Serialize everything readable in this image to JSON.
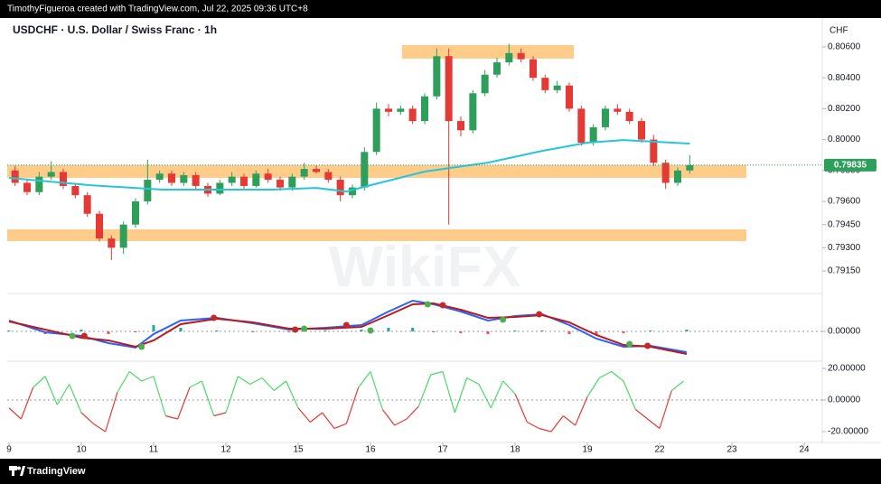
{
  "header": {
    "text": "TimothyFigueroa created with TradingView.com, Jul 22, 2025 09:36 UTC+8"
  },
  "footer": {
    "brand": "TradingView"
  },
  "chart_data": [
    {
      "type": "candlestick",
      "title": "USDCHF · U.S. Dollar / Swiss Franc · 1h",
      "currency": "CHF",
      "watermark": "WikiFX",
      "up_color": "#2e9e5b",
      "down_color": "#e53935",
      "xlim": [
        -0.6,
        270
      ],
      "ylim": [
        0.79004,
        0.80775
      ],
      "yticks": [
        {
          "value": 0.806,
          "label": "0.80600"
        },
        {
          "value": 0.804,
          "label": "0.80400"
        },
        {
          "value": 0.802,
          "label": "0.80200"
        },
        {
          "value": 0.8,
          "label": "0.80000"
        },
        {
          "value": 0.798,
          "label": "0.79800"
        },
        {
          "value": 0.796,
          "label": "0.79600"
        },
        {
          "value": 0.7945,
          "label": "0.79450"
        },
        {
          "value": 0.793,
          "label": "0.79300"
        },
        {
          "value": 0.7915,
          "label": "0.79150"
        }
      ],
      "x": [
        2,
        6,
        10,
        14,
        18,
        22,
        26,
        30,
        34,
        38,
        42,
        46,
        50,
        54,
        58,
        62,
        66,
        70,
        74,
        78,
        82,
        86,
        90,
        94,
        98,
        102,
        106,
        110,
        114,
        118,
        122,
        126,
        130,
        134,
        138,
        142,
        146,
        150,
        154,
        158,
        162,
        166,
        170,
        174,
        178,
        182,
        186,
        190,
        194,
        198,
        202,
        206,
        210,
        214,
        218,
        222,
        226
      ],
      "open": [
        0.798,
        0.7972,
        0.7966,
        0.7976,
        0.7979,
        0.797,
        0.7964,
        0.7952,
        0.7936,
        0.793,
        0.7945,
        0.796,
        0.7974,
        0.7978,
        0.7972,
        0.7977,
        0.797,
        0.7965,
        0.7972,
        0.7976,
        0.797,
        0.7978,
        0.7974,
        0.7969,
        0.7976,
        0.7981,
        0.7979,
        0.7974,
        0.7964,
        0.7969,
        0.7992,
        0.802,
        0.8018,
        0.802,
        0.8012,
        0.8028,
        0.8054,
        0.8012,
        0.8006,
        0.803,
        0.8042,
        0.805,
        0.8056,
        0.8052,
        0.804,
        0.8032,
        0.8035,
        0.802,
        0.7998,
        0.8008,
        0.802,
        0.8018,
        0.8012,
        0.8,
        0.7985,
        0.7972,
        0.798
      ],
      "high": [
        0.7983,
        0.7974,
        0.7979,
        0.7986,
        0.7981,
        0.7972,
        0.7966,
        0.7954,
        0.7938,
        0.7947,
        0.7962,
        0.7987,
        0.798,
        0.798,
        0.7979,
        0.7979,
        0.7972,
        0.7974,
        0.7979,
        0.7978,
        0.798,
        0.7981,
        0.7976,
        0.7978,
        0.7985,
        0.7983,
        0.7981,
        0.7976,
        0.7971,
        0.7995,
        0.8024,
        0.8023,
        0.8022,
        0.8022,
        0.803,
        0.8059,
        0.8059,
        0.8015,
        0.8032,
        0.8045,
        0.8053,
        0.8062,
        0.8059,
        0.8054,
        0.8042,
        0.8038,
        0.8037,
        0.8022,
        0.801,
        0.8022,
        0.8023,
        0.802,
        0.8014,
        0.8003,
        0.7987,
        0.7982,
        0.799
      ],
      "low": [
        0.797,
        0.7964,
        0.7964,
        0.7974,
        0.7968,
        0.7962,
        0.795,
        0.7934,
        0.7922,
        0.7926,
        0.7943,
        0.7958,
        0.7972,
        0.797,
        0.797,
        0.7968,
        0.7963,
        0.7964,
        0.797,
        0.7968,
        0.7969,
        0.7972,
        0.7967,
        0.7967,
        0.7974,
        0.7978,
        0.7972,
        0.796,
        0.7962,
        0.7967,
        0.799,
        0.8015,
        0.8016,
        0.801,
        0.801,
        0.8026,
        0.7945,
        0.8002,
        0.8004,
        0.8028,
        0.804,
        0.8048,
        0.805,
        0.8038,
        0.803,
        0.803,
        0.8018,
        0.7996,
        0.7996,
        0.8006,
        0.8016,
        0.801,
        0.7998,
        0.7983,
        0.7968,
        0.797,
        0.7978
      ],
      "close": [
        0.7972,
        0.7966,
        0.7976,
        0.7979,
        0.797,
        0.7964,
        0.7952,
        0.7936,
        0.793,
        0.7945,
        0.796,
        0.7974,
        0.7978,
        0.7972,
        0.7977,
        0.797,
        0.7965,
        0.7972,
        0.7976,
        0.797,
        0.7978,
        0.7974,
        0.7969,
        0.7976,
        0.7981,
        0.7979,
        0.7974,
        0.7964,
        0.7969,
        0.7992,
        0.802,
        0.8018,
        0.802,
        0.8012,
        0.8028,
        0.8054,
        0.8012,
        0.8006,
        0.803,
        0.8042,
        0.805,
        0.8056,
        0.8052,
        0.804,
        0.8032,
        0.8035,
        0.802,
        0.7998,
        0.8008,
        0.802,
        0.8018,
        0.8012,
        0.8,
        0.7985,
        0.7972,
        0.798,
        0.79835
      ],
      "lines": [
        {
          "color": "#26c6da",
          "x": [
            0,
            27,
            51,
            87,
            102,
            112,
            120,
            138,
            159,
            177,
            192,
            204,
            226
          ],
          "values": [
            0.79752,
            0.79705,
            0.79676,
            0.79676,
            0.79687,
            0.79664,
            0.79705,
            0.79793,
            0.79851,
            0.79927,
            0.7998,
            0.79997,
            0.79974
          ]
        }
      ],
      "zones": [
        {
          "color": "#ffc77d",
          "x": [
            130.5,
            187.5
          ],
          "y": [
            0.80524,
            0.80612
          ]
        },
        {
          "color": "#ffc77d",
          "x": [
            -0.6,
            244.8
          ],
          "y": [
            0.79752,
            0.79834
          ]
        },
        {
          "color": "#ffc77d",
          "x": [
            -0.6,
            244.8
          ],
          "y": [
            0.79343,
            0.79419
          ]
        }
      ],
      "last_price": 0.79835,
      "last_color": "#2e9e5b"
    },
    {
      "type": "line",
      "xlim": [
        -0.6,
        270
      ],
      "ylim": [
        -0.00066,
        0.00078
      ],
      "yticks": [
        {
          "value": 0,
          "label": "0.00000"
        }
      ],
      "baseline": 0,
      "series": [
        {
          "color": "#2962ff",
          "x": [
            0,
            12,
            24,
            33,
            42,
            48,
            57,
            69,
            81,
            93,
            105,
            117,
            126,
            134,
            141,
            150,
            159,
            168,
            177,
            186,
            195,
            204,
            213,
            225
          ],
          "values": [
            0.00024,
            -2e-05,
            -0.0001,
            -0.00026,
            -0.00036,
            -6e-05,
            0.00024,
            0.0003,
            0.00018,
            4e-05,
            8e-05,
            0.00014,
            0.00044,
            0.00068,
            0.0006,
            0.00044,
            0.00024,
            0.00034,
            0.00038,
            0.00014,
            -0.00016,
            -0.00034,
            -0.00032,
            -0.00046
          ]
        },
        {
          "color": "#b71c1c",
          "x": [
            0,
            12,
            24,
            33,
            42,
            48,
            57,
            69,
            81,
            93,
            105,
            117,
            126,
            134,
            141,
            150,
            159,
            168,
            177,
            186,
            195,
            204,
            213,
            225
          ],
          "values": [
            0.00022,
            4e-05,
            -0.00014,
            -0.0002,
            -0.00034,
            -0.0002,
            0.00016,
            0.00028,
            0.0002,
            6e-05,
            6e-05,
            0.0001,
            0.00036,
            0.0006,
            0.00062,
            0.00048,
            0.0003,
            0.00032,
            0.00036,
            0.0002,
            -8e-05,
            -0.0003,
            -0.00034,
            -0.0005
          ]
        }
      ],
      "histogram": {
        "colors": {
          "positive": "#26a69a",
          "negative": "#ef5350"
        },
        "x": [
          0,
          12,
          24,
          33,
          42,
          48,
          57,
          69,
          81,
          93,
          105,
          117,
          126,
          134,
          141,
          150,
          159,
          168,
          177,
          186,
          195,
          204,
          213,
          225
        ],
        "values": [
          2e-05,
          -6e-05,
          4e-05,
          -6e-05,
          -2e-05,
          0.00014,
          8e-05,
          2e-05,
          -2e-05,
          -2e-05,
          2e-05,
          4e-05,
          8e-05,
          8e-05,
          -2e-05,
          -4e-05,
          -6e-05,
          2e-05,
          2e-05,
          -6e-05,
          -8e-05,
          -4e-05,
          2e-05,
          4e-05
        ]
      },
      "markers": [
        {
          "color": "#4caf50",
          "x": [
            21,
            44,
            98,
            120,
            139,
            164,
            206
          ],
          "values": [
            -0.0001,
            -0.00034,
            6e-05,
            2e-05,
            0.0006,
            0.00026,
            -0.00028
          ]
        },
        {
          "color": "#c62828",
          "x": [
            25,
            68,
            95,
            112,
            144,
            176,
            212
          ],
          "values": [
            -0.0001,
            0.0003,
            4e-05,
            0.00014,
            0.00058,
            0.00038,
            -0.00032
          ]
        }
      ]
    },
    {
      "type": "line",
      "xlim": [
        -0.6,
        270
      ],
      "ylim": [
        -26.86,
        24.57
      ],
      "yticks": [
        {
          "value": 20,
          "label": "20.00000"
        },
        {
          "value": 0,
          "label": "0.00000"
        },
        {
          "value": -20,
          "label": "-20.00000"
        }
      ],
      "xticks": [
        {
          "value": 0,
          "label": "9"
        },
        {
          "value": 24,
          "label": "10"
        },
        {
          "value": 48,
          "label": "11"
        },
        {
          "value": 72,
          "label": "12"
        },
        {
          "value": 96,
          "label": "15"
        },
        {
          "value": 120,
          "label": "16"
        },
        {
          "value": 144,
          "label": "17"
        },
        {
          "value": 168,
          "label": "18"
        },
        {
          "value": 192,
          "label": "19"
        },
        {
          "value": 216,
          "label": "22"
        },
        {
          "value": 240,
          "label": "23"
        },
        {
          "value": 264,
          "label": "24"
        }
      ],
      "baseline": 0,
      "series": [
        {
          "colors": {
            "positive": "#4cd964",
            "negative": "#e53935"
          },
          "x": [
            0,
            4,
            8,
            12,
            16,
            20,
            24,
            28,
            32,
            36,
            40,
            44,
            48,
            52,
            56,
            60,
            64,
            68,
            72,
            76,
            80,
            84,
            88,
            92,
            96,
            100,
            104,
            108,
            112,
            116,
            120,
            124,
            128,
            132,
            136,
            140,
            144,
            148,
            152,
            156,
            160,
            164,
            168,
            172,
            176,
            180,
            184,
            188,
            192,
            196,
            200,
            204,
            208,
            212,
            216,
            220,
            224
          ],
          "values": [
            -5,
            -12,
            8,
            15,
            -3,
            10,
            -8,
            -15,
            -20,
            5,
            18,
            12,
            15,
            -10,
            -12,
            8,
            12,
            -10,
            -8,
            15,
            10,
            14,
            6,
            12,
            -5,
            -14,
            -8,
            -18,
            -15,
            8,
            18,
            -6,
            -16,
            -12,
            -4,
            16,
            18,
            -8,
            14,
            10,
            -5,
            12,
            4,
            -14,
            -18,
            -20,
            -10,
            -16,
            2,
            14,
            18,
            12,
            -6,
            -12,
            -18,
            6,
            12
          ]
        }
      ]
    }
  ]
}
